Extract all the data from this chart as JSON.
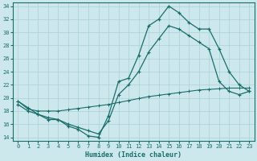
{
  "xlabel": "Humidex (Indice chaleur)",
  "bg_color": "#cce8ed",
  "grid_color": "#aad0d8",
  "line_color": "#1a6e6a",
  "xlim": [
    -0.5,
    23.5
  ],
  "ylim": [
    13.5,
    34.5
  ],
  "yticks": [
    14,
    16,
    18,
    20,
    22,
    24,
    26,
    28,
    30,
    32,
    34
  ],
  "xticks": [
    0,
    1,
    2,
    3,
    4,
    5,
    6,
    7,
    8,
    9,
    10,
    11,
    12,
    13,
    14,
    15,
    16,
    17,
    18,
    19,
    20,
    21,
    22,
    23
  ],
  "line1_x": [
    0,
    1,
    2,
    3,
    4,
    5,
    6,
    7,
    8,
    9,
    10,
    11,
    12,
    13,
    14,
    15,
    16,
    17,
    18,
    19,
    20,
    21,
    22,
    23
  ],
  "line1_y": [
    19.0,
    18.0,
    17.5,
    16.7,
    16.7,
    15.7,
    15.2,
    14.2,
    14.0,
    17.3,
    22.5,
    23.0,
    26.5,
    31.0,
    32.0,
    34.0,
    33.0,
    31.5,
    30.5,
    30.5,
    27.5,
    24.0,
    22.0,
    21.0
  ],
  "line2_x": [
    0,
    1,
    2,
    3,
    4,
    5,
    6,
    7,
    8,
    9,
    10,
    11,
    12,
    13,
    14,
    15,
    16,
    17,
    18,
    19,
    20,
    21,
    22,
    23
  ],
  "line2_y": [
    19.5,
    18.3,
    18.0,
    18.0,
    18.0,
    18.2,
    18.4,
    18.6,
    18.8,
    19.0,
    19.3,
    19.6,
    19.9,
    20.2,
    20.4,
    20.6,
    20.8,
    21.0,
    21.2,
    21.3,
    21.4,
    21.5,
    21.5,
    21.5
  ],
  "line3_x": [
    0,
    1,
    2,
    3,
    4,
    5,
    6,
    7,
    8,
    9,
    10,
    11,
    12,
    13,
    14,
    15,
    16,
    17,
    18,
    19,
    20,
    21,
    22,
    23
  ],
  "line3_y": [
    19.5,
    18.5,
    17.5,
    17.0,
    16.7,
    16.0,
    15.5,
    15.0,
    14.5,
    16.5,
    20.5,
    22.0,
    24.0,
    27.0,
    29.0,
    31.0,
    30.5,
    29.5,
    28.5,
    27.5,
    22.5,
    21.0,
    20.5,
    21.0
  ]
}
